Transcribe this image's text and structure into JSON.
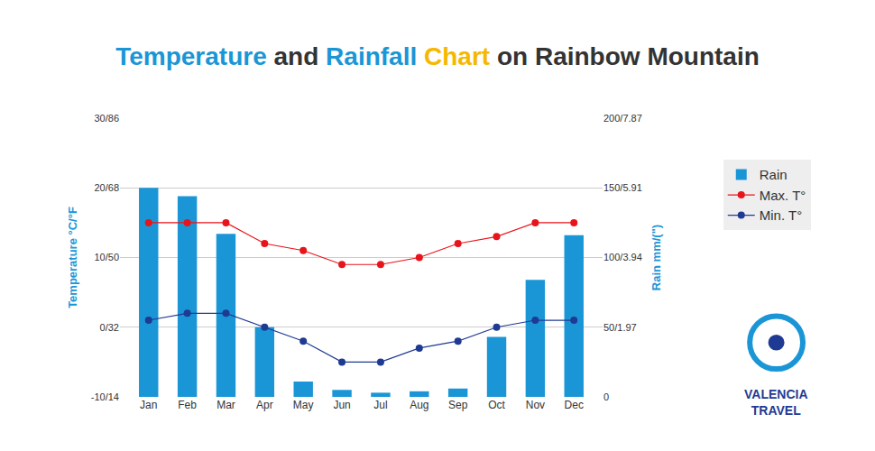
{
  "chart_data": {
    "type": "bar",
    "title": "Temperature and Rainfall Chart on Rainbow Mountain",
    "categories": [
      "Jan",
      "Feb",
      "Mar",
      "Apr",
      "May",
      "Jun",
      "Jul",
      "Aug",
      "Sep",
      "Oct",
      "Nov",
      "Dec"
    ],
    "ylabel": "Temperature °C/°F",
    "y2label": "Rain mm/(\")",
    "series": [
      {
        "name": "Rain",
        "type": "bar",
        "axis": "y2",
        "color": "#1a96d6",
        "values": [
          150,
          144,
          117,
          50,
          11,
          5,
          3,
          4,
          6,
          43,
          84,
          116
        ]
      },
      {
        "name": "Max. T°",
        "type": "line",
        "color": "#e8141b",
        "marker": "circle",
        "values": [
          15,
          15,
          15,
          12,
          11,
          9,
          9,
          10,
          12,
          13,
          15,
          15
        ]
      },
      {
        "name": "Min. T°",
        "type": "line",
        "color": "#1f3a93",
        "marker": "circle",
        "values": [
          1,
          2,
          2,
          0,
          -2,
          -5,
          -5,
          -3,
          -2,
          0,
          1,
          1
        ]
      }
    ],
    "ylim": [
      -10,
      30
    ],
    "yticks": [
      {
        "value": -10,
        "label": "-10/14"
      },
      {
        "value": 0,
        "label": "0/32"
      },
      {
        "value": 10,
        "label": "10/50"
      },
      {
        "value": 20,
        "label": "20/68"
      },
      {
        "value": 30,
        "label": "30/86"
      }
    ],
    "y2lim": [
      0,
      200
    ],
    "y2ticks": [
      0,
      {
        "value": 50,
        "label": "50/1.97"
      },
      {
        "value": 100,
        "label": "100/3.94"
      },
      {
        "value": 150,
        "label": "150/5.91"
      },
      {
        "value": 200,
        "label": "200/7.87"
      }
    ],
    "grid": true,
    "legend": "right",
    "annotations": [
      "VALENCIA TRAVEL"
    ]
  }
}
